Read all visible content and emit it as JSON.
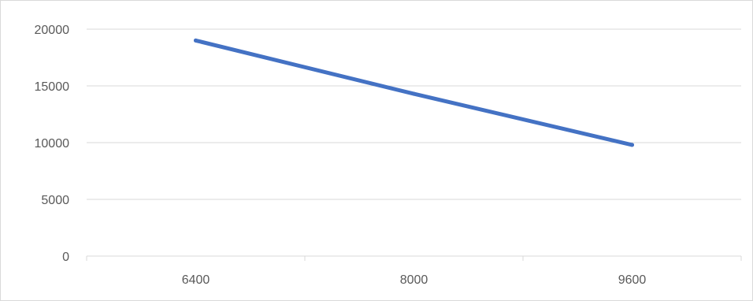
{
  "chart_data": {
    "type": "line",
    "categories": [
      "6400",
      "8000",
      "9600"
    ],
    "series": [
      {
        "values": [
          19000,
          14300,
          9800
        ]
      }
    ],
    "ylim": [
      0,
      20000
    ],
    "yticks": [
      "0",
      "5000",
      "10000",
      "15000",
      "20000"
    ],
    "grid": "horizontal",
    "legend": "none",
    "colors": {
      "line": "#4472C4",
      "grid": "#d9d9d9",
      "axis": "#d9d9d9",
      "text": "#595959"
    }
  }
}
